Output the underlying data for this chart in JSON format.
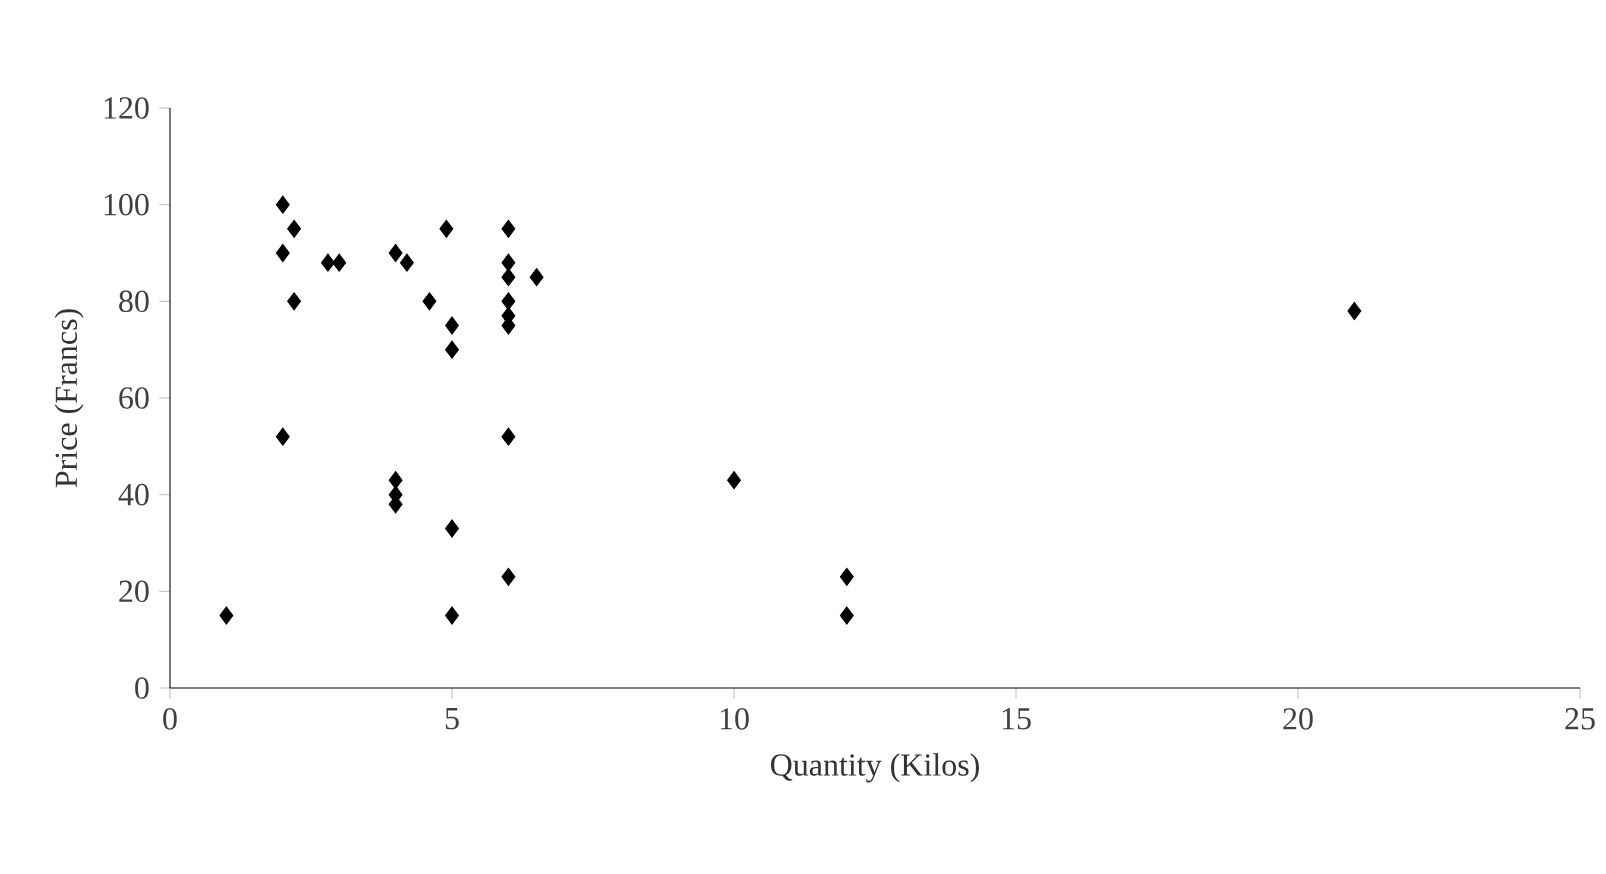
{
  "chart_data": {
    "type": "scatter",
    "xlabel": "Quantity (Kilos)",
    "ylabel": "Price (Francs)",
    "x": [
      1,
      2,
      2,
      2.2,
      2.2,
      2.8,
      3,
      2,
      4,
      4.2,
      4.6,
      4.9,
      5,
      5,
      4,
      4,
      4,
      5,
      5,
      6,
      6,
      6,
      6,
      6,
      6,
      6.5,
      6,
      6,
      10,
      12,
      12,
      21
    ],
    "values": [
      15,
      100,
      90,
      95,
      80,
      88,
      88,
      52,
      90,
      88,
      80,
      95,
      75,
      70,
      43,
      40,
      38,
      33,
      15,
      95,
      88,
      85,
      80,
      77,
      75,
      85,
      52,
      23,
      43,
      23,
      15,
      78
    ],
    "color": "#000000",
    "marker": "diamond",
    "xlim": [
      0,
      25
    ],
    "xticks": [
      0,
      5,
      10,
      15,
      20,
      25
    ],
    "ylim": [
      0,
      120
    ],
    "yticks": [
      0,
      20,
      40,
      60,
      80,
      100,
      120
    ],
    "grid": false
  }
}
